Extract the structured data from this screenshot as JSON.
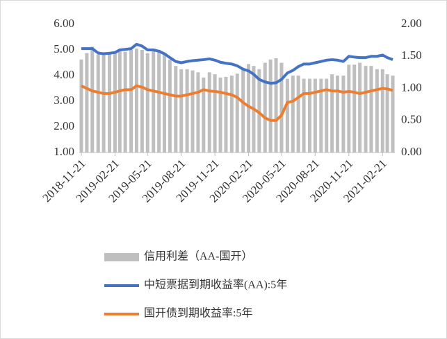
{
  "chart_data": {
    "type": "bar_line",
    "x": [
      "2018-11-21",
      "2018-12-06",
      "2018-12-21",
      "2019-01-06",
      "2019-01-21",
      "2019-02-06",
      "2019-02-21",
      "2019-03-06",
      "2019-03-21",
      "2019-04-06",
      "2019-04-21",
      "2019-05-06",
      "2019-05-21",
      "2019-06-06",
      "2019-06-21",
      "2019-07-06",
      "2019-07-21",
      "2019-08-06",
      "2019-08-21",
      "2019-09-06",
      "2019-09-21",
      "2019-10-06",
      "2019-10-21",
      "2019-11-06",
      "2019-11-21",
      "2019-12-06",
      "2019-12-21",
      "2020-01-06",
      "2020-01-21",
      "2020-02-06",
      "2020-02-21",
      "2020-03-06",
      "2020-03-21",
      "2020-04-06",
      "2020-04-21",
      "2020-05-06",
      "2020-05-21",
      "2020-06-06",
      "2020-06-21",
      "2020-07-06",
      "2020-07-21",
      "2020-08-06",
      "2020-08-21",
      "2020-09-06",
      "2020-09-21",
      "2020-10-06",
      "2020-10-21",
      "2020-11-06",
      "2020-11-21",
      "2020-12-06",
      "2020-12-21",
      "2021-01-06",
      "2021-01-21",
      "2021-02-06",
      "2021-02-21",
      "2021-03-06",
      "2021-03-21"
    ],
    "xlim": [
      "2018-11-21",
      "2021-03-21"
    ],
    "xticks": [
      "2018-11-21",
      "2019-02-21",
      "2019-05-21",
      "2019-08-21",
      "2019-11-21",
      "2020-02-21",
      "2020-05-21",
      "2020-08-21",
      "2020-11-21",
      "2021-02-21"
    ],
    "ylim": [
      1,
      6
    ],
    "yticks": [
      {
        "value": 1,
        "label": "1.00"
      },
      {
        "value": 2,
        "label": "2.00"
      },
      {
        "value": 3,
        "label": "3.00"
      },
      {
        "value": 4,
        "label": "4.00"
      },
      {
        "value": 5,
        "label": "5.00"
      },
      {
        "value": 6,
        "label": "6.00"
      }
    ],
    "y2lim": [
      0,
      2
    ],
    "y2ticks": [
      {
        "value": 0,
        "label": "0.00"
      },
      {
        "value": 0.5,
        "label": "0.50"
      },
      {
        "value": 1,
        "label": "1.00"
      },
      {
        "value": 1.5,
        "label": "1.50"
      },
      {
        "value": 2,
        "label": "2.00"
      }
    ],
    "series": [
      {
        "name": "信用利差（AA-国开）",
        "color": "#bfbfbf",
        "kind": "bar",
        "axis": "y2",
        "values": [
          1.45,
          1.55,
          1.65,
          1.53,
          1.55,
          1.57,
          1.55,
          1.6,
          1.57,
          1.6,
          1.62,
          1.6,
          1.55,
          1.6,
          1.6,
          1.55,
          1.45,
          1.35,
          1.3,
          1.3,
          1.28,
          1.25,
          1.17,
          1.25,
          1.22,
          1.17,
          1.18,
          1.2,
          1.23,
          1.3,
          1.38,
          1.35,
          1.3,
          1.4,
          1.45,
          1.47,
          1.4,
          1.15,
          1.2,
          1.2,
          1.15,
          1.15,
          1.15,
          1.15,
          1.15,
          1.22,
          1.2,
          1.2,
          1.37,
          1.37,
          1.4,
          1.35,
          1.35,
          1.3,
          1.3,
          1.22,
          1.2
        ]
      },
      {
        "name": "中短票据到期收益率(AA):5年",
        "color": "#4472c4",
        "kind": "line",
        "values": [
          5.05,
          5.05,
          5.05,
          4.88,
          4.85,
          4.87,
          4.9,
          5.0,
          5.02,
          5.05,
          5.22,
          5.15,
          5.0,
          5.0,
          4.95,
          4.85,
          4.7,
          4.55,
          4.5,
          4.55,
          4.58,
          4.6,
          4.62,
          4.65,
          4.6,
          4.52,
          4.48,
          4.45,
          4.38,
          4.25,
          4.18,
          4.05,
          3.85,
          3.75,
          3.7,
          3.72,
          3.85,
          4.1,
          4.2,
          4.35,
          4.45,
          4.45,
          4.5,
          4.55,
          4.6,
          4.62,
          4.6,
          4.55,
          4.75,
          4.72,
          4.7,
          4.7,
          4.75,
          4.75,
          4.8,
          4.7,
          4.62
        ]
      },
      {
        "name": "国开债到期收益率:5年",
        "color": "#ed7d31",
        "kind": "line",
        "values": [
          3.6,
          3.5,
          3.4,
          3.35,
          3.3,
          3.3,
          3.35,
          3.4,
          3.45,
          3.45,
          3.6,
          3.55,
          3.45,
          3.4,
          3.35,
          3.3,
          3.25,
          3.2,
          3.2,
          3.25,
          3.3,
          3.35,
          3.45,
          3.4,
          3.38,
          3.35,
          3.3,
          3.25,
          3.15,
          2.95,
          2.8,
          2.7,
          2.55,
          2.35,
          2.25,
          2.25,
          2.45,
          2.95,
          3.0,
          3.15,
          3.3,
          3.3,
          3.35,
          3.4,
          3.45,
          3.4,
          3.4,
          3.35,
          3.38,
          3.35,
          3.3,
          3.35,
          3.4,
          3.45,
          3.5,
          3.48,
          3.42
        ]
      }
    ]
  }
}
